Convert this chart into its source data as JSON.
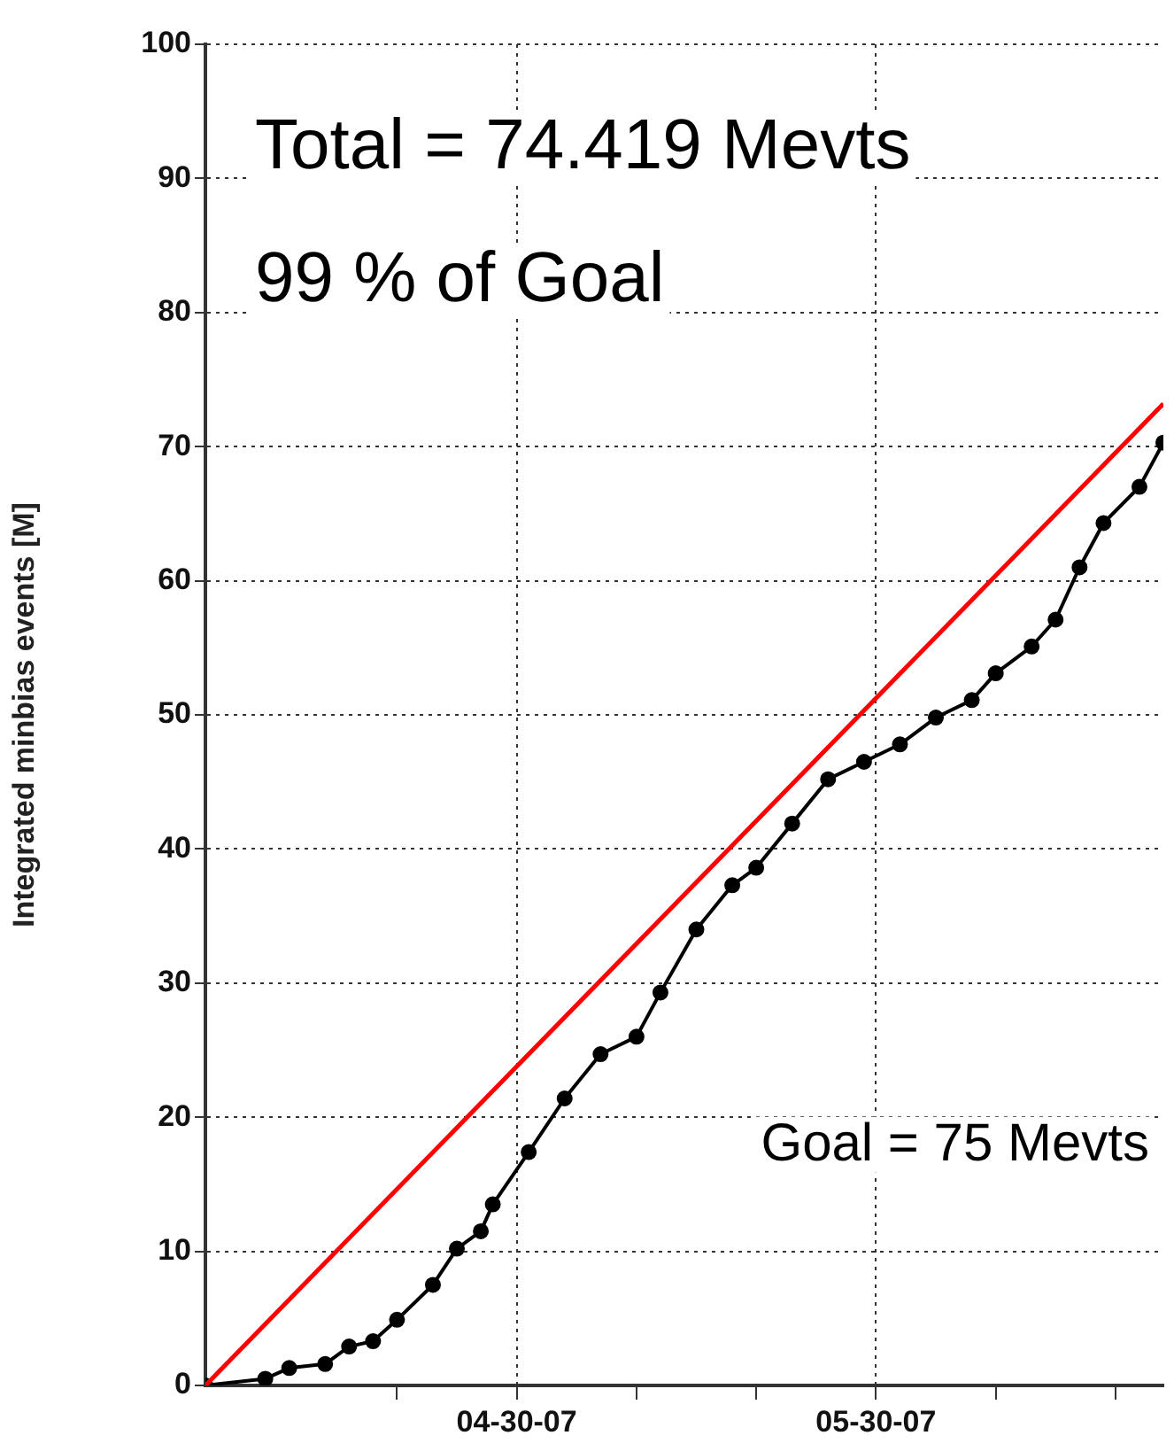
{
  "chart_data": {
    "type": "line",
    "ylabel": "Integrated minbias events [M]",
    "xlim": [
      "--04-04",
      "--06-23"
    ],
    "xticks": [
      {
        "value": "--04-20",
        "label": null
      },
      {
        "value": "--04-30",
        "label": "04-30-07"
      },
      {
        "value": "--05-10",
        "label": null
      },
      {
        "value": "--05-20",
        "label": null
      },
      {
        "value": "--05-30",
        "label": "05-30-07"
      },
      {
        "value": "--06-09",
        "label": null
      },
      {
        "value": "--06-19",
        "label": null
      }
    ],
    "ylim": [
      0,
      100
    ],
    "yticks": [
      0,
      10,
      20,
      30,
      40,
      50,
      60,
      70,
      80,
      90,
      100
    ],
    "grid": true,
    "series": [
      {
        "type": "line",
        "color": "#ff0000",
        "marker": "none",
        "x": [
          "--04-04",
          "--06-23"
        ],
        "values": [
          0,
          73.2
        ]
      },
      {
        "type": "line",
        "color": "#000000",
        "marker": "circle",
        "x": [
          "--04-04",
          "--04-09",
          "--04-11",
          "--04-14",
          "--04-16",
          "--04-18",
          "--04-20",
          "--04-23",
          "--04-25",
          "--04-27",
          "--04-28",
          "--05-01",
          "--05-04",
          "--05-07",
          "--05-10",
          "--05-12",
          "--05-15",
          "--05-18",
          "--05-20",
          "--05-23",
          "--05-26",
          "--05-29",
          "--06-01",
          "--06-04",
          "--06-07",
          "--06-09",
          "--06-12",
          "--06-14",
          "--06-16",
          "--06-18",
          "--06-21",
          "--06-23"
        ],
        "values": [
          0,
          0.5,
          1.3,
          1.6,
          2.9,
          3.3,
          4.9,
          7.5,
          10.2,
          11.5,
          13.5,
          17.4,
          21.4,
          24.7,
          26.0,
          29.3,
          34.0,
          37.3,
          38.6,
          41.9,
          45.2,
          46.5,
          47.8,
          49.8,
          51.1,
          53.1,
          55.1,
          57.1,
          61.0,
          64.3,
          67.0,
          70.3
        ]
      }
    ],
    "annotations": [
      "Total = 74.419 Mevts",
      "99 % of Goal",
      "Goal = 75 Mevts"
    ]
  }
}
